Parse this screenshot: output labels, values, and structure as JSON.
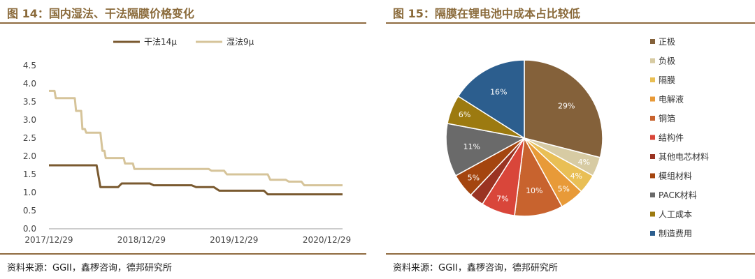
{
  "left": {
    "title": "图 14：国内湿法、干法隔膜价格变化",
    "source": "资料来源：GGII，鑫椤咨询，德邦研究所"
  },
  "right": {
    "title": "图 15：隔膜在锂电池中成本占比较低",
    "source": "资料来源：GGII，鑫椤咨询，德邦研究所"
  },
  "chart_data": [
    {
      "type": "line",
      "x_ticks": [
        "2017/12/29",
        "2018/12/29",
        "2019/12/29",
        "2020/12/29"
      ],
      "y_ticks": [
        "0.0",
        "0.5",
        "1.0",
        "1.5",
        "2.0",
        "2.5",
        "3.0",
        "3.5",
        "4.0",
        "4.5"
      ],
      "ylim": [
        0,
        4.5
      ],
      "xlim": [
        "2017/12/29",
        "2021/03/01"
      ],
      "legend_position": "top",
      "series": [
        {
          "name": "干法14μ",
          "color": "#7a5a30",
          "x": [
            "2017/12/29",
            "2018/07/05",
            "2018/07/20",
            "2018/08/10",
            "2018/09/28",
            "2018/10/12",
            "2019/01/31",
            "2019/02/15",
            "2019/07/15",
            "2019/08/01",
            "2019/10/10",
            "2019/11/01",
            "2020/04/25",
            "2020/05/10",
            "2021/03/01"
          ],
          "y": [
            1.75,
            1.75,
            1.15,
            1.15,
            1.15,
            1.25,
            1.25,
            1.2,
            1.2,
            1.15,
            1.15,
            1.05,
            1.05,
            0.95,
            0.95
          ]
        },
        {
          "name": "湿法9μ",
          "color": "#d6c49a",
          "x": [
            "2017/12/29",
            "2018/01/20",
            "2018/01/25",
            "2018/04/10",
            "2018/04/15",
            "2018/05/05",
            "2018/05/10",
            "2018/05/20",
            "2018/05/25",
            "2018/07/20",
            "2018/07/28",
            "2018/08/05",
            "2018/08/10",
            "2018/10/20",
            "2018/10/25",
            "2018/11/25",
            "2018/12/01",
            "2019/09/20",
            "2019/10/01",
            "2019/11/20",
            "2019/12/01",
            "2020/05/10",
            "2020/05/20",
            "2020/07/20",
            "2020/08/01",
            "2020/09/20",
            "2020/10/01",
            "2021/03/01"
          ],
          "y": [
            3.8,
            3.8,
            3.6,
            3.6,
            3.25,
            3.25,
            2.75,
            2.75,
            2.65,
            2.65,
            2.15,
            2.15,
            1.95,
            1.95,
            1.8,
            1.8,
            1.65,
            1.65,
            1.6,
            1.6,
            1.5,
            1.5,
            1.35,
            1.35,
            1.3,
            1.3,
            1.2,
            1.2
          ]
        }
      ]
    },
    {
      "type": "pie",
      "legend_position": "right",
      "slices": [
        {
          "label": "正极",
          "value": 29,
          "color": "#84613a",
          "display": "29%"
        },
        {
          "label": "负极",
          "value": 4,
          "color": "#d7cba3",
          "display": "4%"
        },
        {
          "label": "隔膜",
          "value": 4,
          "color": "#e9bf55",
          "display": "4%"
        },
        {
          "label": "电解液",
          "value": 5,
          "color": "#e89a38",
          "display": "5%"
        },
        {
          "label": "铜箔",
          "value": 10,
          "color": "#c8632e",
          "display": "10%"
        },
        {
          "label": "结构件",
          "value": 7,
          "color": "#d9463a",
          "display": "7%"
        },
        {
          "label": "其他电芯材料",
          "value": 3,
          "color": "#9a3322",
          "display": ""
        },
        {
          "label": "模组材料",
          "value": 5,
          "color": "#a4450f",
          "display": "5%"
        },
        {
          "label": "PACK材料",
          "value": 11,
          "color": "#6a6a6a",
          "display": "11%"
        },
        {
          "label": "人工成本",
          "value": 6,
          "color": "#9c7a10",
          "display": "6%"
        },
        {
          "label": "制造费用",
          "value": 16,
          "color": "#2c5e8e",
          "display": "16%"
        }
      ]
    }
  ]
}
